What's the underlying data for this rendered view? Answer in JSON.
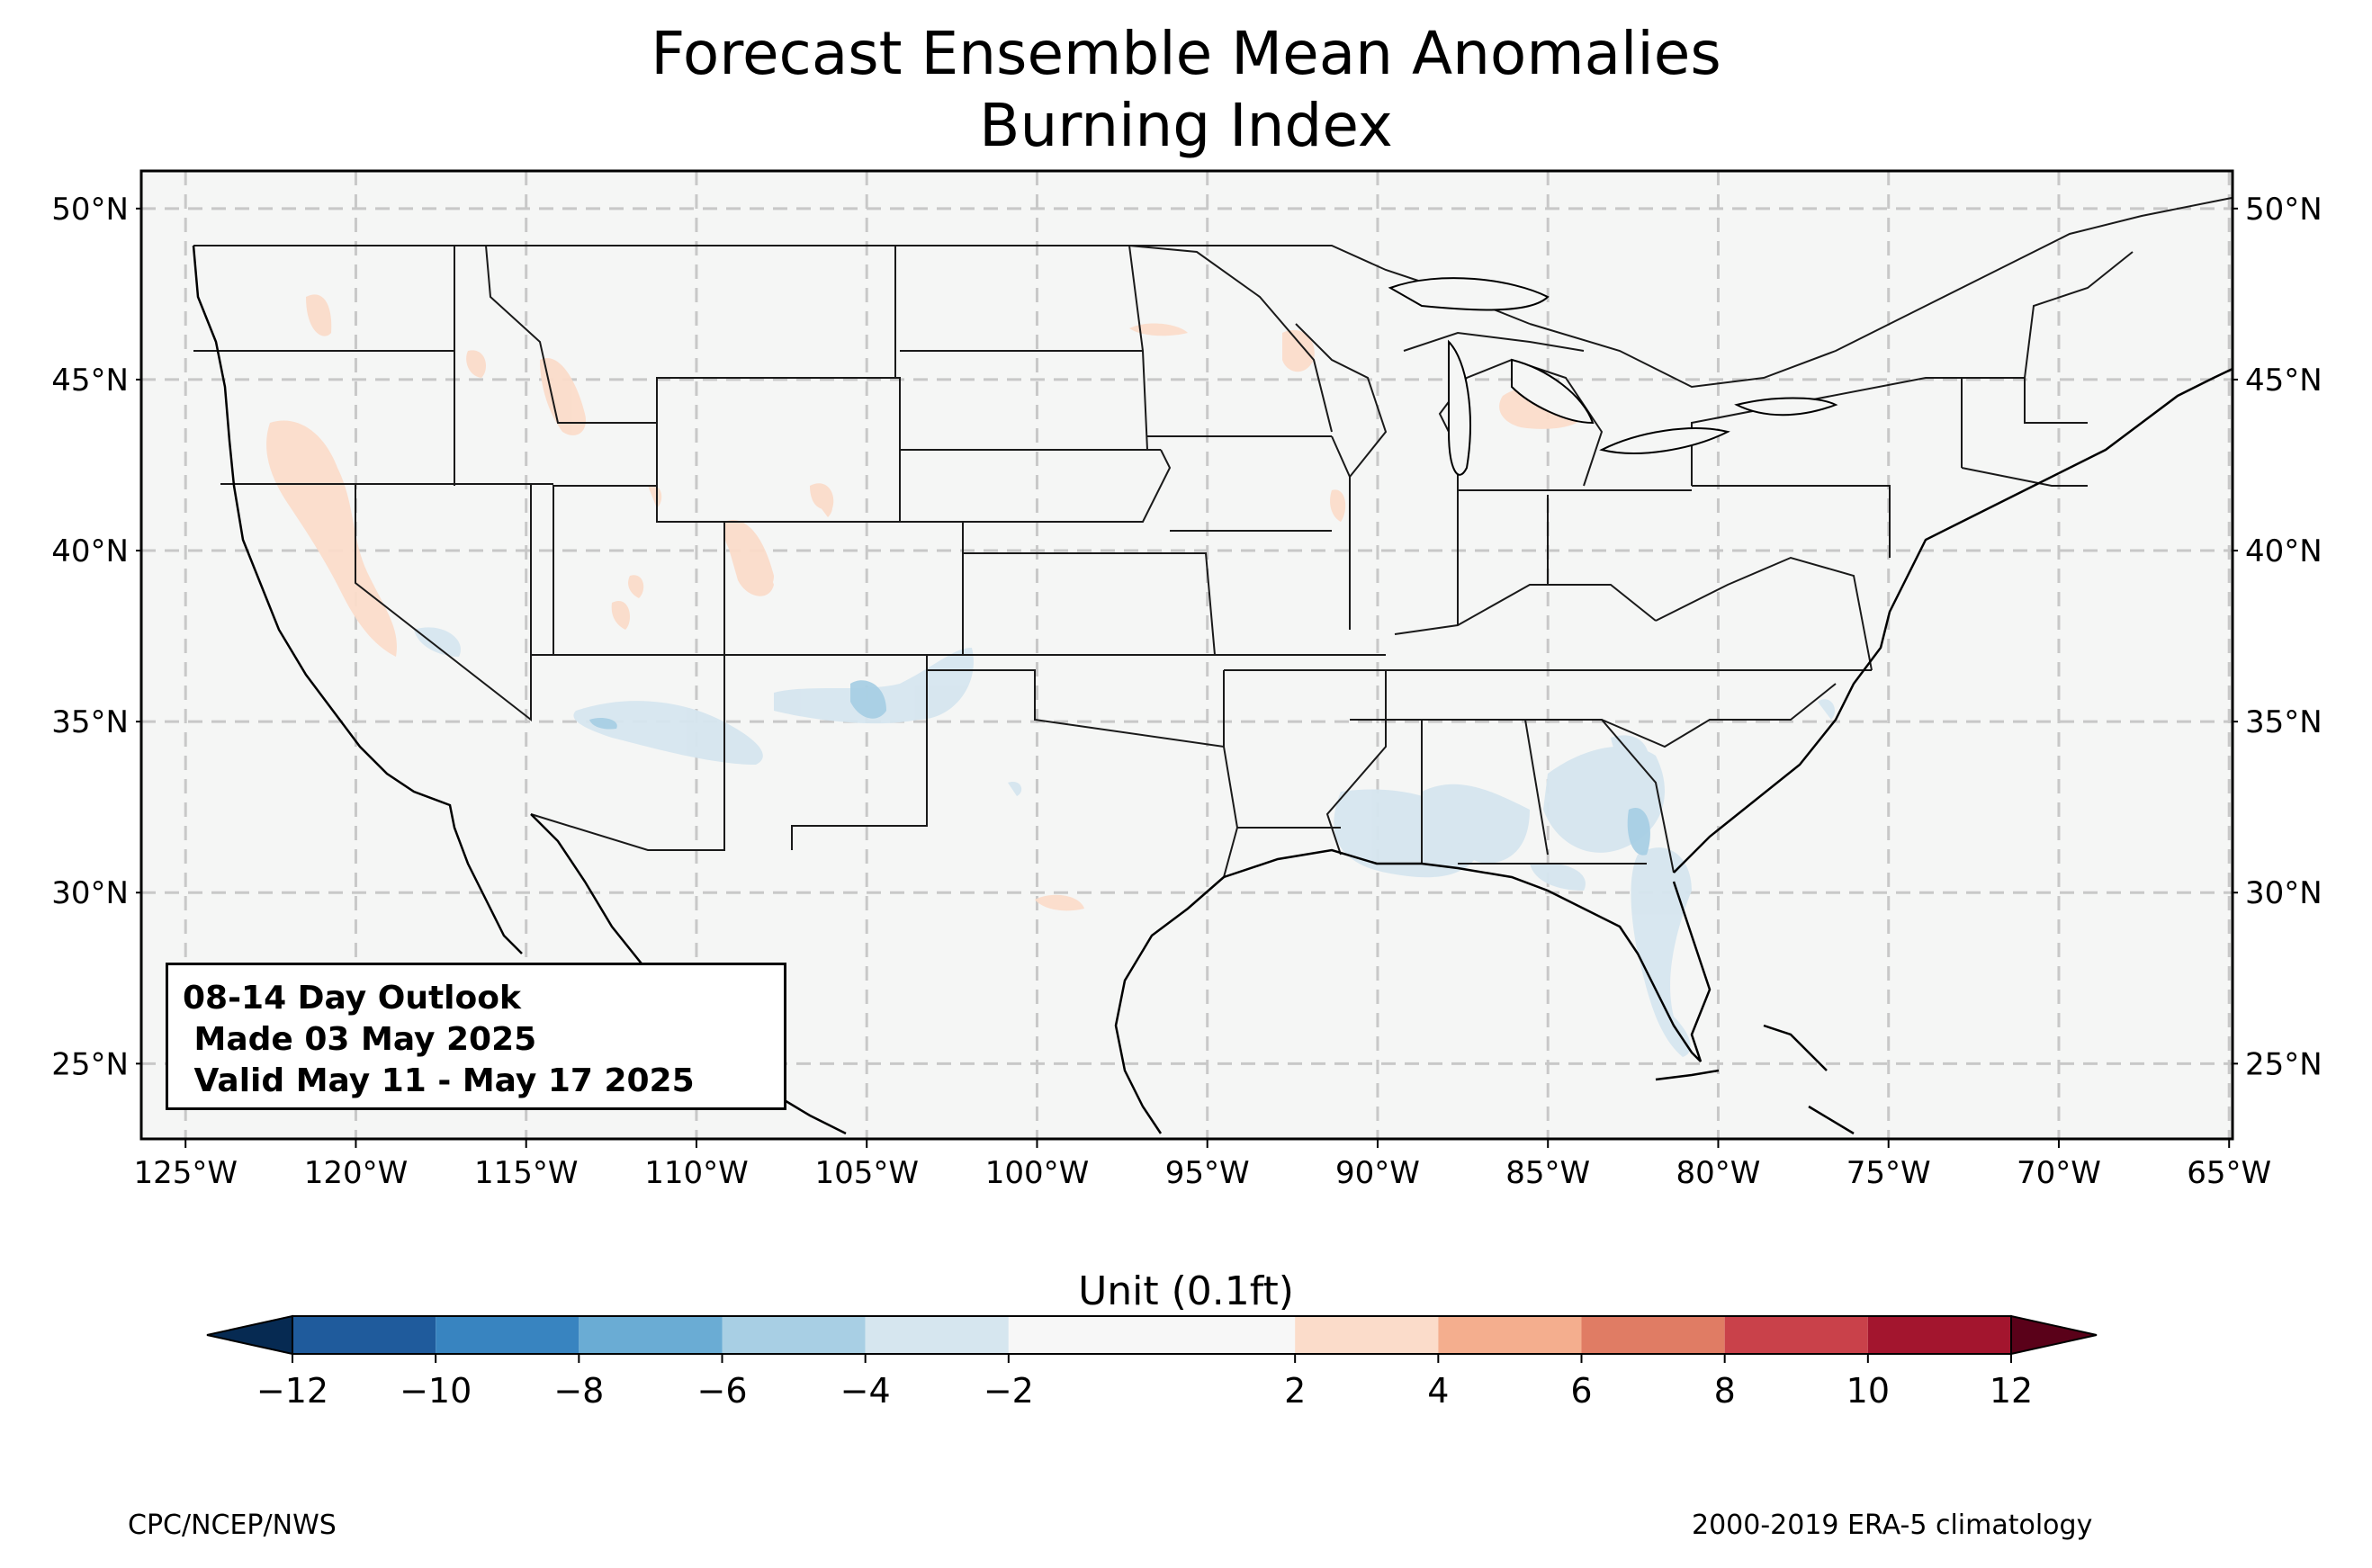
{
  "title": {
    "line1": "Forecast Ensemble Mean Anomalies",
    "line2": "Burning Index"
  },
  "map": {
    "lon_range": [
      -126.3,
      -64.9
    ],
    "lat_range": [
      22.8,
      51.1
    ],
    "lon_ticks": [
      "125°W",
      "120°W",
      "115°W",
      "110°W",
      "105°W",
      "100°W",
      "95°W",
      "90°W",
      "85°W",
      "80°W",
      "75°W",
      "70°W",
      "65°W"
    ],
    "lat_ticks": [
      "25°N",
      "30°N",
      "35°N",
      "40°N",
      "45°N",
      "50°N"
    ],
    "background_color": "#f5f6f5",
    "gridlines": "dashed"
  },
  "outlook_box": {
    "line1": "08-14 Day Outlook",
    "line2": " Made 03 May 2025",
    "line3": " Valid May 11 - May 17 2025"
  },
  "colorbar": {
    "title": "Unit (0.1ft)",
    "tick_labels": [
      "−12",
      "−10",
      "−8",
      "−6",
      "−4",
      "−2",
      "2",
      "4",
      "6",
      "8",
      "10",
      "12"
    ],
    "bins": [
      {
        "range": [
          -12,
          -10
        ],
        "color": "#1f5b9c"
      },
      {
        "range": [
          -10,
          -8
        ],
        "color": "#3884c0"
      },
      {
        "range": [
          -8,
          -6
        ],
        "color": "#6aacd4"
      },
      {
        "range": [
          -6,
          -4
        ],
        "color": "#a8cfe4"
      },
      {
        "range": [
          -4,
          -2
        ],
        "color": "#d6e6ef"
      },
      {
        "range": [
          -2,
          2
        ],
        "color": "#f7f7f7"
      },
      {
        "range": [
          2,
          4
        ],
        "color": "#fbdcca"
      },
      {
        "range": [
          4,
          6
        ],
        "color": "#f4ae8e"
      },
      {
        "range": [
          6,
          8
        ],
        "color": "#e07c64"
      },
      {
        "range": [
          8,
          10
        ],
        "color": "#c9414a"
      },
      {
        "range": [
          10,
          12
        ],
        "color": "#a3152e"
      }
    ],
    "under_color": "#062a52",
    "over_color": "#5a0119"
  },
  "footer": {
    "left": "CPC/NCEP/NWS",
    "right": "2000-2019 ERA-5 climatology"
  }
}
